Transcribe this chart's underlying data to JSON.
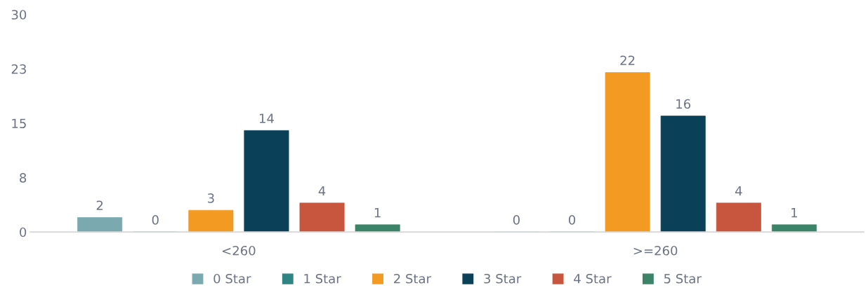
{
  "chart_data": {
    "type": "bar",
    "categories": [
      "<260",
      ">=260"
    ],
    "series": [
      {
        "name": "0 Star",
        "color": "#7aa9b0",
        "values": [
          2,
          0
        ]
      },
      {
        "name": "1 Star",
        "color": "#2e8583",
        "values": [
          0,
          0
        ]
      },
      {
        "name": "2 Star",
        "color": "#f39a22",
        "values": [
          3,
          22
        ]
      },
      {
        "name": "3 Star",
        "color": "#0a4158",
        "values": [
          14,
          16
        ]
      },
      {
        "name": "4 Star",
        "color": "#c8553d",
        "values": [
          4,
          4
        ]
      },
      {
        "name": "5 Star",
        "color": "#3b8468",
        "values": [
          1,
          1
        ]
      }
    ],
    "ylim": [
      0,
      30
    ],
    "yticks": [
      0,
      {
        "value": 7.5,
        "label": "8"
      },
      15,
      {
        "value": 22.5,
        "label": "23"
      },
      30
    ],
    "data_labels": true,
    "grid": false,
    "legend": "bottom"
  }
}
